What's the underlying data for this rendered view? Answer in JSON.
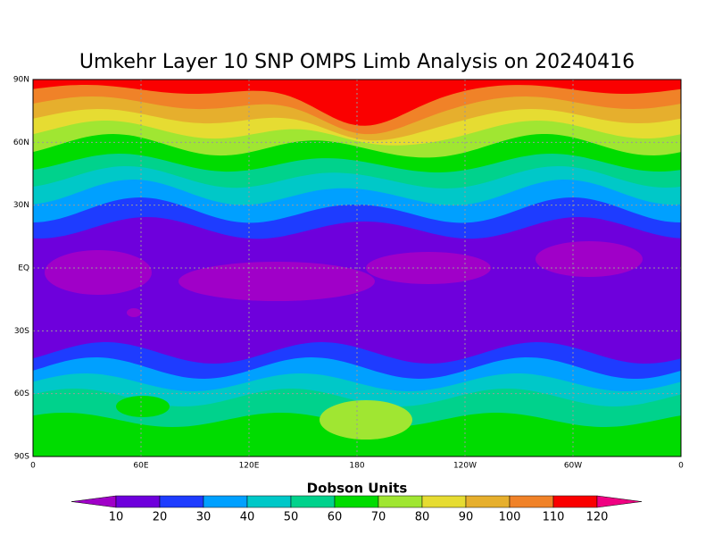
{
  "title": "Umkehr Layer 10 SNP OMPS Limb Analysis on 20240416",
  "lat_labels": [
    "90N",
    "60N",
    "30N",
    "EQ",
    "30S",
    "60S",
    "90S"
  ],
  "lon_labels": [
    "0",
    "60E",
    "120E",
    "180",
    "120W",
    "60W",
    "0"
  ],
  "colorbar": {
    "label": "Dobson Units",
    "levels": [
      10,
      20,
      30,
      40,
      50,
      60,
      70,
      80,
      90,
      100,
      110,
      120
    ],
    "colors": [
      "#a000c8",
      "#6e00dc",
      "#1e3cff",
      "#00a0ff",
      "#00c8c8",
      "#00d28c",
      "#00dc00",
      "#a0e632",
      "#e6dc32",
      "#e6af2d",
      "#f08228",
      "#fa0000",
      "#f00082"
    ]
  }
}
